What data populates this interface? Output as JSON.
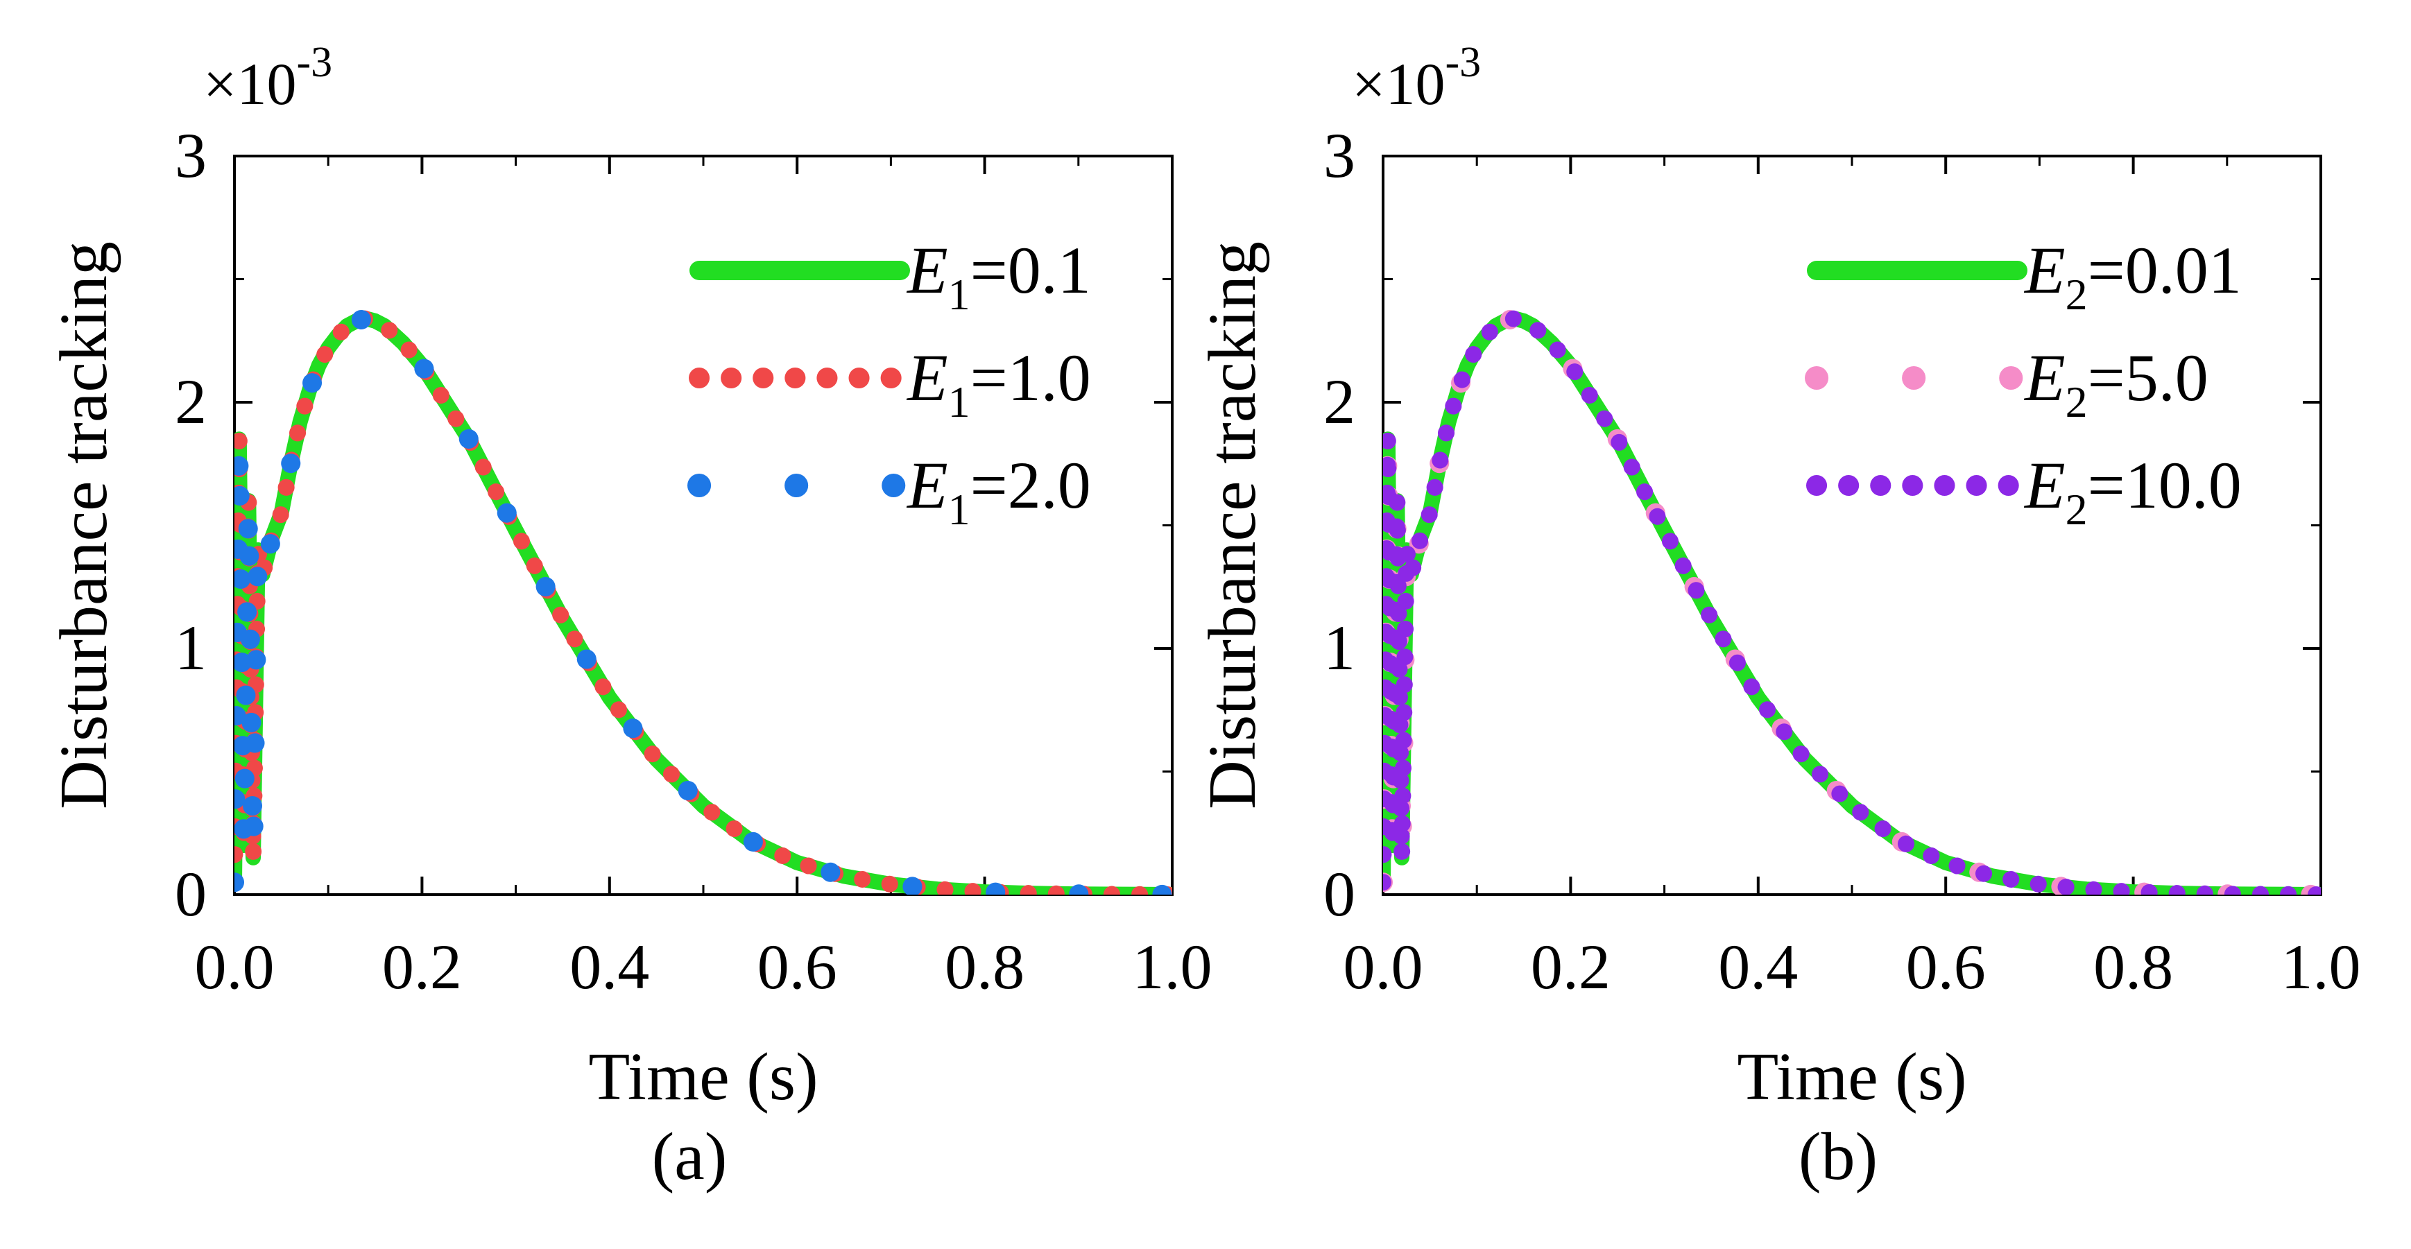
{
  "chart_data": [
    {
      "type": "line",
      "panel_label": "(a)",
      "xlabel": "Time (s)",
      "ylabel": "Disturbance tracking",
      "scale_label": "×10",
      "scale_exp": "-3",
      "xlim": [
        0,
        1.0
      ],
      "ylim": [
        0,
        3
      ],
      "xticks": [
        "0.0",
        "0.2",
        "0.4",
        "0.6",
        "0.8",
        "1.0"
      ],
      "yticks": [
        "0",
        "1",
        "2",
        "3"
      ],
      "legend_position": "top-right",
      "series": [
        {
          "name": "E1=0.1",
          "sym": "E",
          "sub": "1",
          "val": "=0.1",
          "color": "#22dd22",
          "style": "solid"
        },
        {
          "name": "E1=1.0",
          "sym": "E",
          "sub": "1",
          "val": "=1.0",
          "color": "#f04848",
          "style": "dotted"
        },
        {
          "name": "E1=2.0",
          "sym": "E",
          "sub": "1",
          "val": "=2.0",
          "color": "#1e78e6",
          "style": "dashed"
        }
      ],
      "curve": {
        "x": [
          0.0,
          0.005,
          0.01,
          0.015,
          0.02,
          0.025,
          0.03,
          0.04,
          0.05,
          0.06,
          0.07,
          0.08,
          0.09,
          0.1,
          0.11,
          0.12,
          0.13,
          0.14,
          0.15,
          0.16,
          0.18,
          0.2,
          0.25,
          0.3,
          0.35,
          0.4,
          0.45,
          0.5,
          0.55,
          0.6,
          0.65,
          0.7,
          0.75,
          0.8,
          0.85,
          0.9,
          0.95,
          1.0
        ],
        "y": [
          0.05,
          1.85,
          0.2,
          1.6,
          0.15,
          1.4,
          1.3,
          1.45,
          1.55,
          1.75,
          1.92,
          2.05,
          2.15,
          2.22,
          2.27,
          2.31,
          2.33,
          2.34,
          2.33,
          2.31,
          2.24,
          2.15,
          1.85,
          1.48,
          1.12,
          0.8,
          0.55,
          0.36,
          0.22,
          0.13,
          0.075,
          0.042,
          0.022,
          0.011,
          0.005,
          0.002,
          0.001,
          0.0
        ]
      }
    },
    {
      "type": "line",
      "panel_label": "(b)",
      "xlabel": "Time (s)",
      "ylabel": "Disturbance tracking",
      "scale_label": "×10",
      "scale_exp": "-3",
      "xlim": [
        0,
        1.0
      ],
      "ylim": [
        0,
        3
      ],
      "xticks": [
        "0.0",
        "0.2",
        "0.4",
        "0.6",
        "0.8",
        "1.0"
      ],
      "yticks": [
        "0",
        "1",
        "2",
        "3"
      ],
      "legend_position": "top-right",
      "series": [
        {
          "name": "E2=0.01",
          "sym": "E",
          "sub": "2",
          "val": "=0.01",
          "color": "#22dd22",
          "style": "solid"
        },
        {
          "name": "E2=5.0",
          "sym": "E",
          "sub": "2",
          "val": "=5.0",
          "color": "#f58cc8",
          "style": "dashed"
        },
        {
          "name": "E2=10.0",
          "sym": "E",
          "sub": "2",
          "val": "=10.0",
          "color": "#8c28e6",
          "style": "dotted"
        }
      ],
      "curve": {
        "x": [
          0.0,
          0.005,
          0.01,
          0.015,
          0.02,
          0.025,
          0.03,
          0.04,
          0.05,
          0.06,
          0.07,
          0.08,
          0.09,
          0.1,
          0.11,
          0.12,
          0.13,
          0.14,
          0.15,
          0.16,
          0.18,
          0.2,
          0.25,
          0.3,
          0.35,
          0.4,
          0.45,
          0.5,
          0.55,
          0.6,
          0.65,
          0.7,
          0.75,
          0.8,
          0.85,
          0.9,
          0.95,
          1.0
        ],
        "y": [
          0.05,
          1.85,
          0.2,
          1.6,
          0.15,
          1.4,
          1.3,
          1.45,
          1.55,
          1.75,
          1.92,
          2.05,
          2.15,
          2.22,
          2.27,
          2.31,
          2.33,
          2.34,
          2.33,
          2.31,
          2.24,
          2.15,
          1.85,
          1.48,
          1.12,
          0.8,
          0.55,
          0.36,
          0.22,
          0.13,
          0.075,
          0.042,
          0.022,
          0.011,
          0.005,
          0.002,
          0.001,
          0.0
        ]
      }
    }
  ]
}
